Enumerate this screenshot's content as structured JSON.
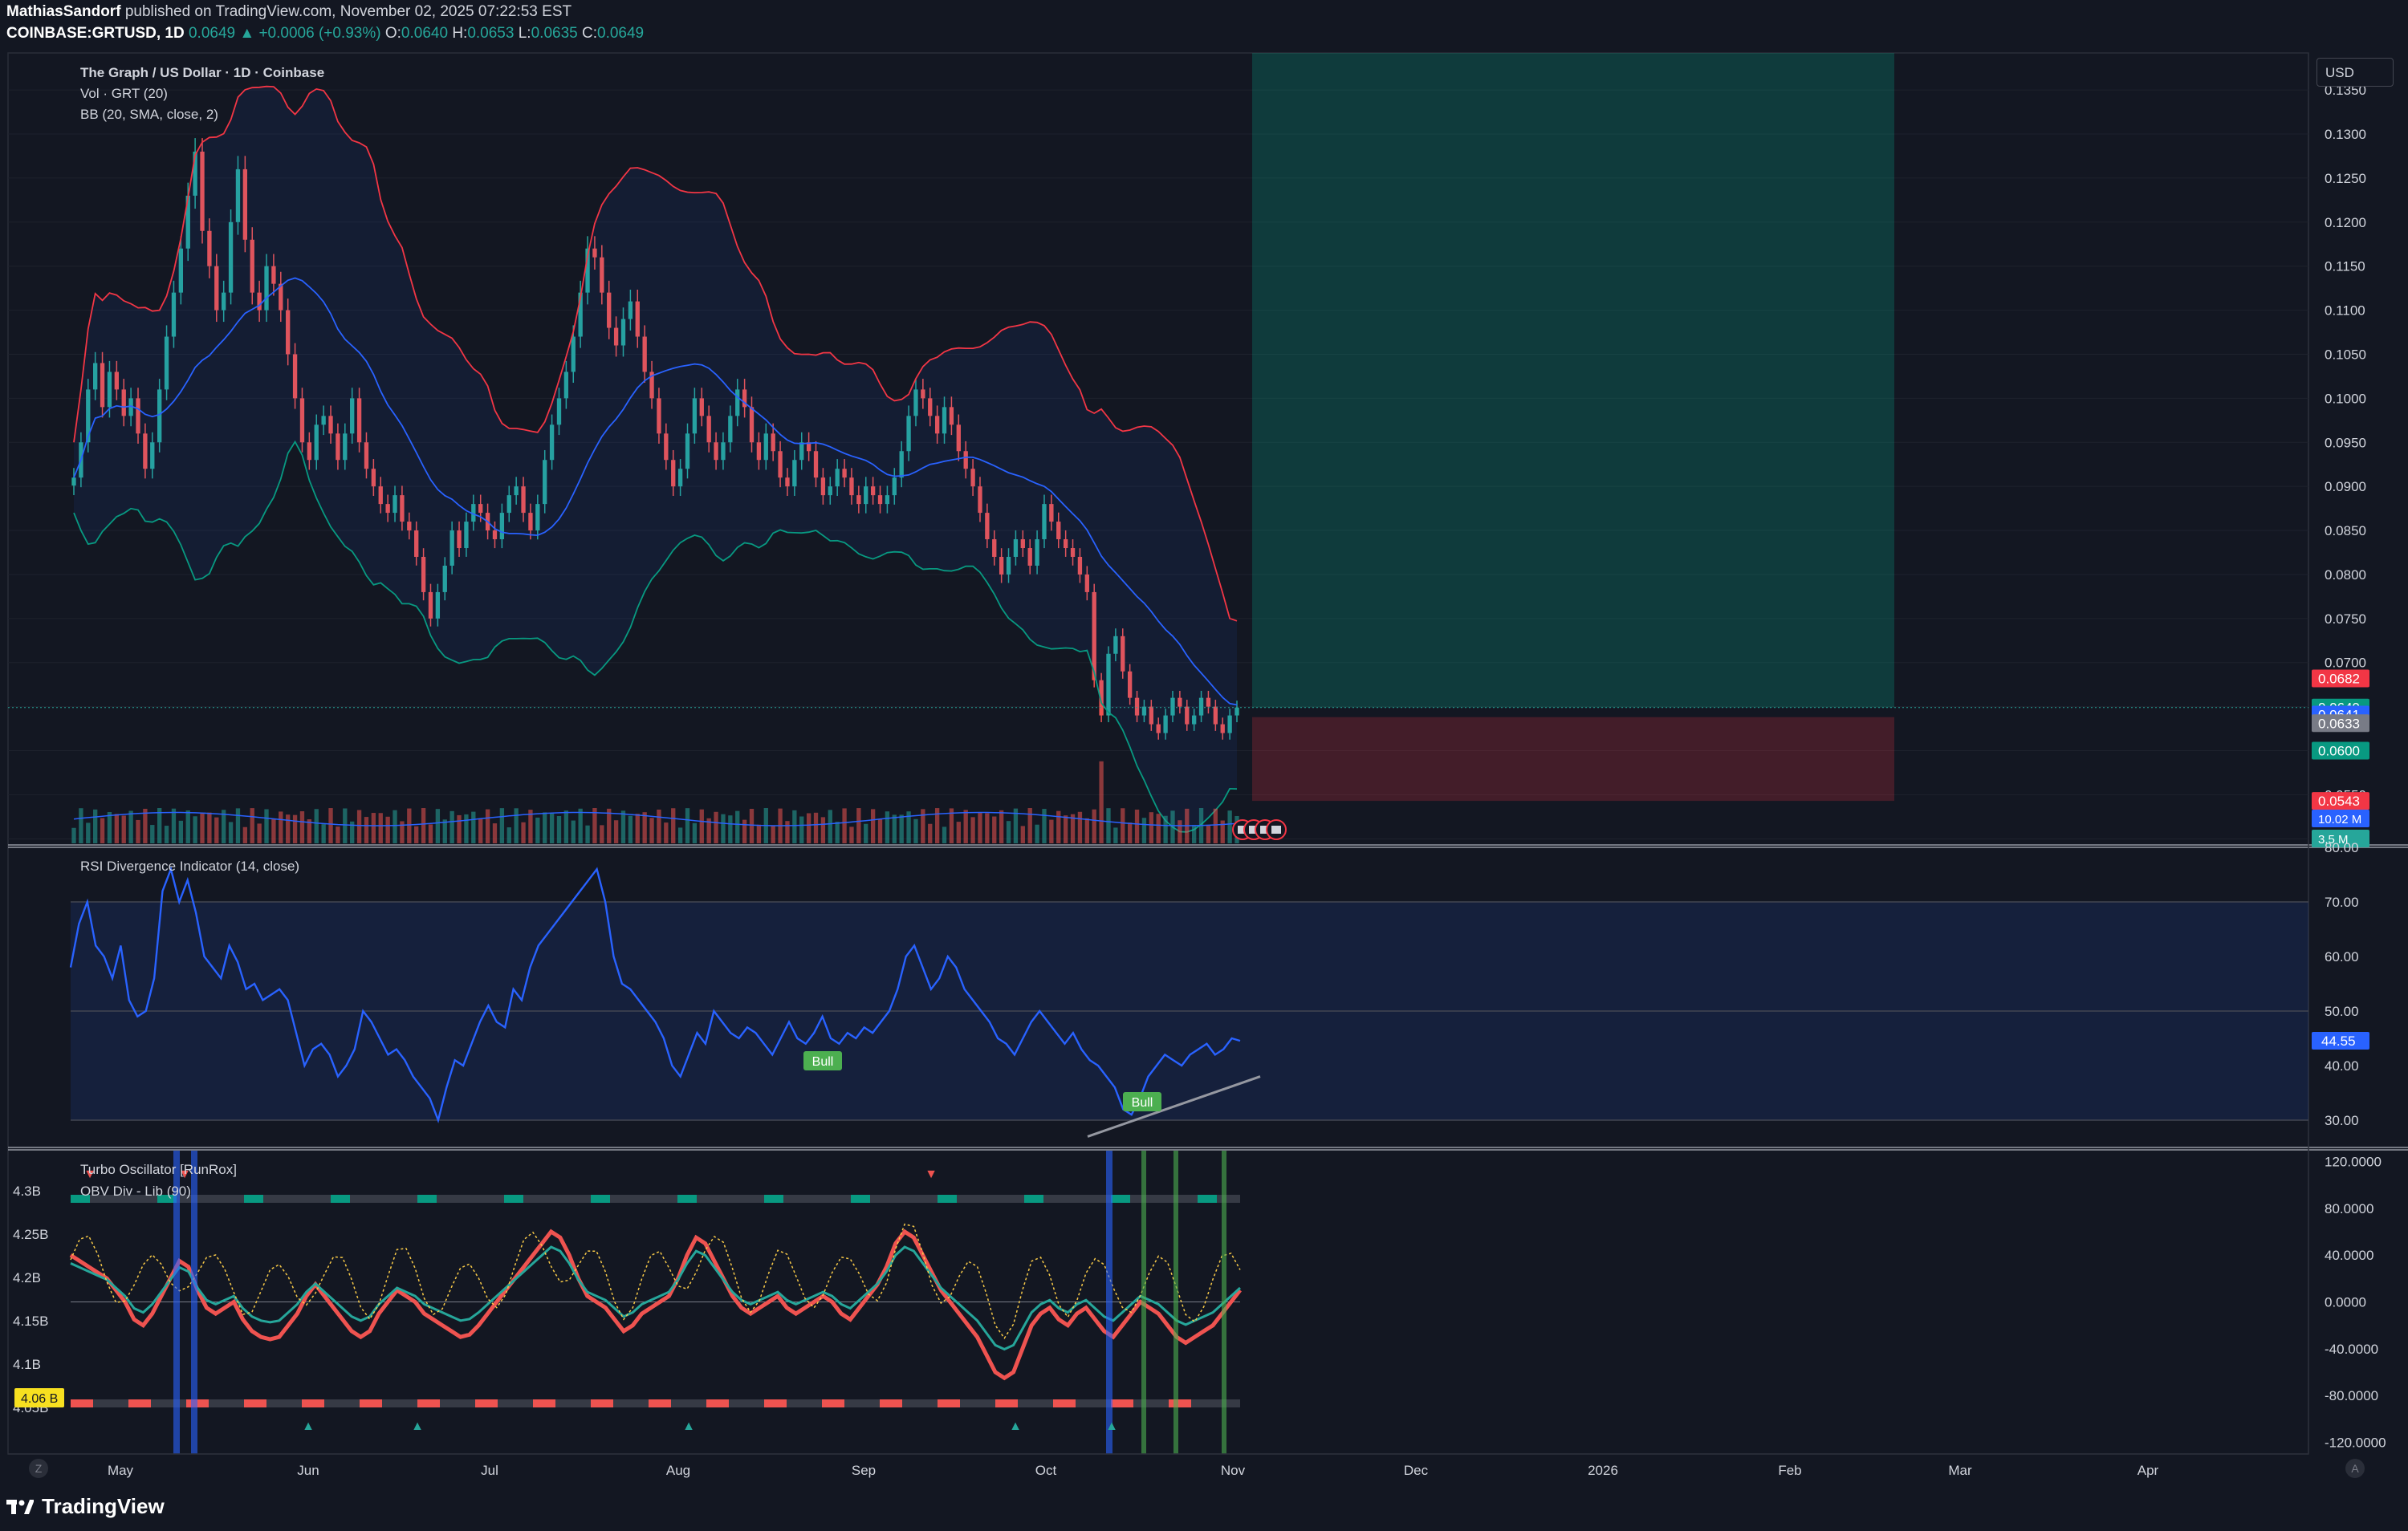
{
  "header": {
    "author": "MathiasSandorf",
    "published_text": "published on TradingView.com, November 02, 2025 07:22:53 EST",
    "symbol_line": "COINBASE:GRTUSD, 1D",
    "last": "0.0649",
    "change": "▲ +0.0006 (+0.93%)",
    "o_label": "O:",
    "o": "0.0640",
    "h_label": "H:",
    "h": "0.0653",
    "l_label": "L:",
    "l": "0.0635",
    "c_label": "C:",
    "c": "0.0649"
  },
  "currency_button": "USD",
  "colors": {
    "up": "#26a69a",
    "down": "#ef5350",
    "bb_mid": "#2962ff",
    "bb_upper": "#f23645",
    "bb_lower": "#089981",
    "rsi": "#2962ff",
    "bg": "#131722",
    "grid": "#1e222d",
    "text": "#d1d4dc"
  },
  "chart_data": [
    {
      "type": "candlestick",
      "title": "The Graph / US Dollar · 1D · Coinbase",
      "legend": [
        "Vol · GRT (20)",
        "BB (20, SMA, close, 2)"
      ],
      "y_ticks": [
        "0.1350",
        "0.1300",
        "0.1250",
        "0.1200",
        "0.1150",
        "0.1100",
        "0.1050",
        "0.1000",
        "0.0950",
        "0.0900",
        "0.0850",
        "0.0800",
        "0.0750",
        "0.0700",
        "0.0650",
        "0.0600",
        "0.0550",
        "0.0500"
      ],
      "ylim": [
        0.0493,
        0.1392
      ],
      "x_start": "2025-04-22",
      "x_ticks": [
        "May",
        "Jun",
        "Jul",
        "Aug",
        "Sep",
        "Oct",
        "Nov",
        "Dec",
        "2026",
        "Feb",
        "Mar",
        "Apr"
      ],
      "close": [
        0.091,
        0.095,
        0.101,
        0.104,
        0.099,
        0.103,
        0.101,
        0.098,
        0.1,
        0.096,
        0.092,
        0.095,
        0.101,
        0.107,
        0.112,
        0.117,
        0.123,
        0.128,
        0.119,
        0.115,
        0.11,
        0.112,
        0.12,
        0.126,
        0.118,
        0.112,
        0.11,
        0.115,
        0.113,
        0.11,
        0.105,
        0.1,
        0.095,
        0.093,
        0.097,
        0.098,
        0.096,
        0.093,
        0.096,
        0.1,
        0.095,
        0.092,
        0.09,
        0.088,
        0.087,
        0.089,
        0.086,
        0.085,
        0.082,
        0.078,
        0.075,
        0.078,
        0.081,
        0.085,
        0.083,
        0.086,
        0.088,
        0.087,
        0.085,
        0.084,
        0.087,
        0.089,
        0.09,
        0.087,
        0.085,
        0.088,
        0.093,
        0.097,
        0.1,
        0.103,
        0.107,
        0.112,
        0.117,
        0.116,
        0.112,
        0.108,
        0.106,
        0.109,
        0.111,
        0.107,
        0.103,
        0.1,
        0.096,
        0.093,
        0.09,
        0.092,
        0.096,
        0.1,
        0.098,
        0.095,
        0.093,
        0.095,
        0.098,
        0.101,
        0.099,
        0.095,
        0.093,
        0.096,
        0.094,
        0.091,
        0.09,
        0.093,
        0.095,
        0.094,
        0.091,
        0.089,
        0.09,
        0.092,
        0.091,
        0.089,
        0.088,
        0.09,
        0.089,
        0.088,
        0.089,
        0.091,
        0.094,
        0.098,
        0.101,
        0.1,
        0.098,
        0.096,
        0.099,
        0.097,
        0.094,
        0.092,
        0.09,
        0.087,
        0.084,
        0.082,
        0.08,
        0.082,
        0.084,
        0.083,
        0.081,
        0.084,
        0.088,
        0.086,
        0.084,
        0.083,
        0.082,
        0.08,
        0.078,
        0.068,
        0.064,
        0.071,
        0.073,
        0.069,
        0.066,
        0.064,
        0.065,
        0.063,
        0.062,
        0.064,
        0.066,
        0.065,
        0.063,
        0.064,
        0.066,
        0.065,
        0.063,
        0.062,
        0.064,
        0.0649
      ],
      "volume_avg_scale": "relative",
      "price_labels": [
        "0.0682",
        "0.0649",
        "0.0641",
        "0.0633",
        "0.0600",
        "0.0543"
      ],
      "volume_labels": [
        "10.02 M",
        "3.5 M"
      ],
      "position": {
        "start_index": 193,
        "end_index": 273,
        "entry": 0.0649,
        "target": 0.1392,
        "stop": 0.0543
      }
    },
    {
      "type": "line",
      "title": "RSI Divergence Indicator (14, close)",
      "y_ticks": [
        "80.00",
        "70.00",
        "60.00",
        "50.00",
        "40.00",
        "30.00"
      ],
      "ylim": [
        25,
        80
      ],
      "bands": [
        30,
        50,
        70
      ],
      "last_label": "44.55",
      "annotations": [
        "Bull",
        "Bull"
      ],
      "values": [
        58,
        66,
        70,
        62,
        60,
        56,
        62,
        52,
        49,
        50,
        56,
        72,
        76,
        70,
        74,
        68,
        60,
        58,
        56,
        62,
        59,
        54,
        55,
        52,
        53,
        54,
        52,
        46,
        40,
        43,
        44,
        42,
        38,
        40,
        43,
        50,
        48,
        45,
        42,
        43,
        41,
        38,
        36,
        34,
        30,
        36,
        41,
        40,
        44,
        48,
        51,
        48,
        47,
        54,
        52,
        58,
        62,
        64,
        66,
        68,
        70,
        72,
        74,
        76,
        70,
        60,
        55,
        54,
        52,
        50,
        48,
        45,
        40,
        38,
        42,
        46,
        44,
        50,
        48,
        46,
        45,
        47,
        46,
        44,
        42,
        45,
        48,
        45,
        44,
        46,
        49,
        45,
        44,
        46,
        45,
        47,
        46,
        48,
        50,
        54,
        60,
        62,
        58,
        54,
        56,
        60,
        58,
        54,
        52,
        50,
        48,
        45,
        44,
        42,
        45,
        48,
        50,
        48,
        46,
        44,
        46,
        43,
        41,
        40,
        38,
        36,
        32,
        31,
        34,
        38,
        40,
        42,
        41,
        40,
        42,
        43,
        44,
        42,
        43,
        45,
        44.55
      ]
    },
    {
      "type": "line",
      "title": "Turbo Oscillator [RunRox]",
      "subtitle": "OBV Div - Lib (90)",
      "y_ticks": [
        "120.0000",
        "80.0000",
        "40.0000",
        "0.0000",
        "-40.0000",
        "-80.0000",
        "-120.0000"
      ],
      "left_ticks": [
        "4.3B",
        "4.25B",
        "4.2B",
        "4.15B",
        "4.1B",
        "4.05B"
      ],
      "left_label": "4.06 B",
      "ylim": [
        -130,
        130
      ],
      "series": [
        {
          "values": [
            40,
            35,
            30,
            25,
            20,
            10,
            0,
            -15,
            -20,
            -10,
            5,
            20,
            35,
            30,
            10,
            -5,
            -10,
            -5,
            0,
            -15,
            -25,
            -30,
            -32,
            -30,
            -20,
            -10,
            5,
            15,
            5,
            -5,
            -15,
            -25,
            -30,
            -25,
            -10,
            0,
            10,
            5,
            0,
            -10,
            -15,
            -20,
            -25,
            -30,
            -28,
            -20,
            -10,
            0,
            10,
            20,
            30,
            40,
            50,
            60,
            55,
            40,
            20,
            5,
            0,
            -5,
            -15,
            -25,
            -20,
            -10,
            -5,
            0,
            5,
            20,
            40,
            55,
            50,
            35,
            20,
            5,
            -5,
            -10,
            -5,
            0,
            5,
            -5,
            -10,
            -5,
            0,
            5,
            0,
            -10,
            -15,
            -5,
            5,
            15,
            30,
            50,
            60,
            55,
            40,
            25,
            10,
            0,
            -10,
            -20,
            -30,
            -45,
            -60,
            -65,
            -60,
            -40,
            -20,
            -10,
            -5,
            -15,
            -20,
            -10,
            -5,
            -15,
            -25,
            -30,
            -20,
            -10,
            0,
            -5,
            -10,
            -20,
            -30,
            -35,
            -30,
            -25,
            -20,
            -10,
            0,
            10
          ]
        }
      ],
      "signals": [
        "▼",
        "▼",
        "▼",
        "▲",
        "▲",
        "▲",
        "▲",
        "▲"
      ]
    }
  ]
}
